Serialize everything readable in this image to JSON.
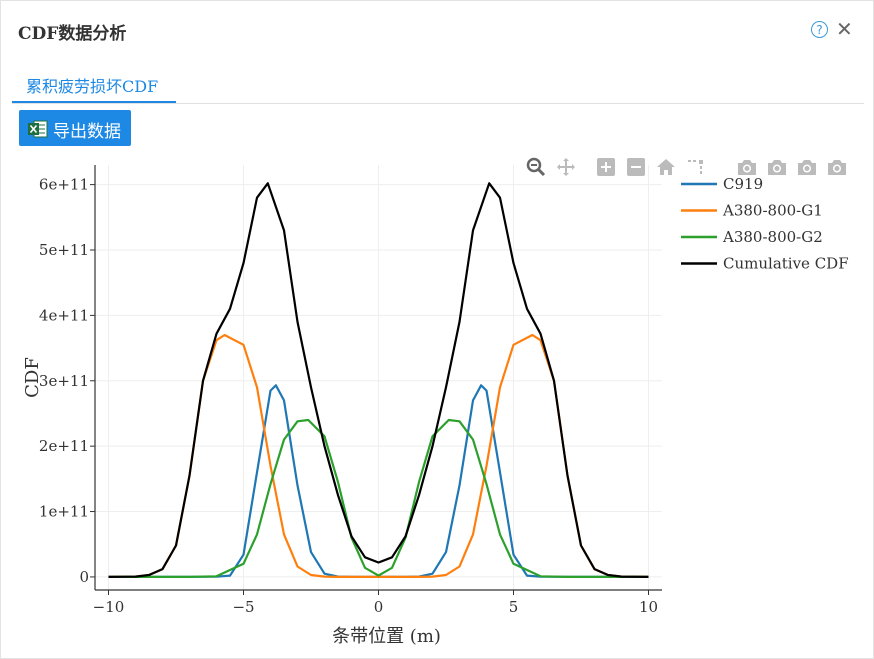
{
  "dialog": {
    "title": "CDF数据分析",
    "help_label": "?",
    "close_label": "✕"
  },
  "tabs": [
    {
      "label": "累积疲劳损坏CDF",
      "active": true
    }
  ],
  "toolbar": {
    "export_label": "导出数据",
    "export_icon": "excel-icon"
  },
  "modebar": [
    "zoom-icon",
    "pan-icon",
    "zoom-in-icon",
    "zoom-out-icon",
    "home-icon",
    "spike-lines-icon",
    "camera-icon",
    "camera-icon",
    "camera-icon",
    "camera-icon"
  ],
  "chart_data": {
    "type": "line",
    "xlabel": "条带位置 (m)",
    "ylabel": "CDF",
    "xlim": [
      -10.5,
      10.5
    ],
    "ylim": [
      -20000000000.0,
      630000000000.0
    ],
    "x_ticks": [
      {
        "value": -10,
        "label": "−10"
      },
      {
        "value": -5,
        "label": "−5"
      },
      {
        "value": 0,
        "label": "0"
      },
      {
        "value": 5,
        "label": "5"
      },
      {
        "value": 10,
        "label": "10"
      }
    ],
    "y_ticks": [
      {
        "value": 0,
        "label": "0"
      },
      {
        "value": 100000000000.0,
        "label": "1e+11"
      },
      {
        "value": 200000000000.0,
        "label": "2e+11"
      },
      {
        "value": 300000000000.0,
        "label": "3e+11"
      },
      {
        "value": 400000000000.0,
        "label": "4e+11"
      },
      {
        "value": 500000000000.0,
        "label": "5e+11"
      },
      {
        "value": 600000000000.0,
        "label": "6e+11"
      }
    ],
    "grid": true,
    "legend_position": "top-right",
    "series": [
      {
        "name": "C919",
        "color": "#1f77b4",
        "x": [
          -10,
          -8,
          -6,
          -5.5,
          -5,
          -4.5,
          -4,
          -3.8,
          -3.5,
          -3,
          -2.5,
          -2,
          -1.5,
          -1,
          -0.5,
          0,
          0.5,
          1,
          1.5,
          2,
          2.5,
          3,
          3.5,
          3.8,
          4,
          4.5,
          5,
          5.5,
          6,
          8,
          10
        ],
        "y": [
          0,
          0,
          300000000.0,
          2000000000.0,
          34000000000.0,
          160000000000.0,
          285000000000.0,
          293000000000.0,
          270000000000.0,
          140000000000.0,
          38000000000.0,
          5000000000.0,
          500000000.0,
          0,
          0,
          0,
          0,
          0,
          500000000.0,
          5000000000.0,
          38000000000.0,
          140000000000.0,
          270000000000.0,
          293000000000.0,
          285000000000.0,
          160000000000.0,
          34000000000.0,
          2000000000.0,
          300000000.0,
          0,
          0
        ]
      },
      {
        "name": "A380-800-G1",
        "color": "#ff7f0e",
        "x": [
          -10,
          -9,
          -8.5,
          -8,
          -7.5,
          -7,
          -6.5,
          -6,
          -5.7,
          -5,
          -4.5,
          -4,
          -3.5,
          -3,
          -2.5,
          -2,
          -1.5,
          -1,
          0,
          1,
          1.5,
          2,
          2.5,
          3,
          3.5,
          4,
          4.5,
          5,
          5.7,
          6,
          6.5,
          7,
          7.5,
          8,
          8.5,
          9,
          10
        ],
        "y": [
          0,
          500000000.0,
          3000000000.0,
          12000000000.0,
          48000000000.0,
          155000000000.0,
          300000000000.0,
          362000000000.0,
          370000000000.0,
          355000000000.0,
          290000000000.0,
          170000000000.0,
          65000000000.0,
          16000000000.0,
          3000000000.0,
          500000000.0,
          0,
          0,
          0,
          0,
          0,
          500000000.0,
          3000000000.0,
          16000000000.0,
          65000000000.0,
          170000000000.0,
          290000000000.0,
          355000000000.0,
          370000000000.0,
          362000000000.0,
          300000000000.0,
          155000000000.0,
          48000000000.0,
          12000000000.0,
          3000000000.0,
          500000000.0,
          0
        ]
      },
      {
        "name": "A380-800-G2",
        "color": "#2ca02c",
        "x": [
          -10,
          -7,
          -6,
          -5,
          -4.5,
          -4,
          -3.5,
          -3,
          -2.6,
          -2,
          -1.5,
          -1,
          -0.5,
          0,
          0.5,
          1,
          1.5,
          2,
          2.6,
          3,
          3.5,
          4,
          4.5,
          5,
          6,
          7,
          10
        ],
        "y": [
          0,
          0,
          1000000000.0,
          20000000000.0,
          65000000000.0,
          142000000000.0,
          210000000000.0,
          238000000000.0,
          240000000000.0,
          215000000000.0,
          145000000000.0,
          60000000000.0,
          14000000000.0,
          2000000000.0,
          14000000000.0,
          60000000000.0,
          145000000000.0,
          215000000000.0,
          240000000000.0,
          238000000000.0,
          210000000000.0,
          142000000000.0,
          65000000000.0,
          20000000000.0,
          1000000000.0,
          0,
          0
        ]
      },
      {
        "name": "Cumulative CDF",
        "color": "#000000",
        "x": [
          -10,
          -9,
          -8.5,
          -8,
          -7.5,
          -7,
          -6.5,
          -6,
          -5.5,
          -5,
          -4.5,
          -4.1,
          -3.5,
          -3,
          -2.5,
          -2,
          -1.5,
          -1,
          -0.5,
          0,
          0.5,
          1,
          1.5,
          2,
          2.5,
          3,
          3.5,
          4.1,
          4.5,
          5,
          5.5,
          6,
          6.5,
          7,
          7.5,
          8,
          8.5,
          9,
          10
        ],
        "y": [
          0,
          500000000.0,
          3000000000.0,
          12000000000.0,
          48000000000.0,
          155000000000.0,
          300000000000.0,
          372000000000.0,
          410000000000.0,
          480000000000.0,
          580000000000.0,
          602000000000.0,
          530000000000.0,
          390000000000.0,
          290000000000.0,
          200000000000.0,
          125000000000.0,
          62000000000.0,
          30000000000.0,
          22000000000.0,
          30000000000.0,
          62000000000.0,
          125000000000.0,
          200000000000.0,
          290000000000.0,
          390000000000.0,
          530000000000.0,
          602000000000.0,
          580000000000.0,
          480000000000.0,
          410000000000.0,
          372000000000.0,
          300000000000.0,
          155000000000.0,
          48000000000.0,
          12000000000.0,
          3000000000.0,
          500000000.0,
          0
        ]
      }
    ]
  }
}
